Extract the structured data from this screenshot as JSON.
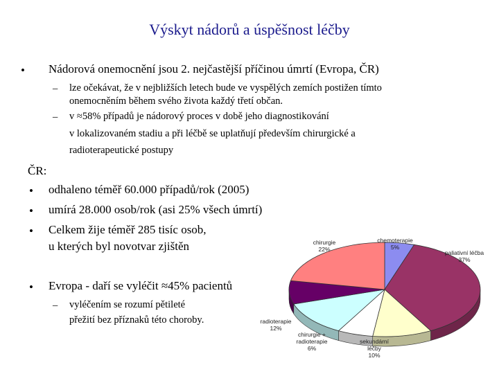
{
  "title": "Výskyt nádorů a úspěšnost léčby",
  "bullet_glyph": "•",
  "dash_glyph": "–",
  "section1": {
    "text": "Nádorová onemocnění jsou 2. nejčastější příčinou úmrtí (Evropa, ČR)",
    "sub": [
      {
        "lines": [
          "lze očekávat, že v nejbližších letech bude ve vyspělých zemích postižen tímto",
          "onemocněním během svého života každý třetí občan."
        ]
      },
      {
        "lines": [
          "v ≈58% případů je nádorový proces v době jeho diagnostikování",
          "v lokalizovaném stadiu a při léčbě se uplatňují především chirurgické a",
          "radioterapeutické postupy"
        ]
      }
    ]
  },
  "cr": {
    "heading": "ČR:",
    "items": [
      "odhaleno téměř 60.000 případů/rok (2005)",
      "umírá 28.000 osob/rok (asi 25% všech úmrtí)",
      "Celkem žije téměř 285 tisíc osob,",
      "u kterých byl novotvar zjištěn"
    ]
  },
  "europe": {
    "text": "Evropa - daří se vyléčit ≈45% pacientů",
    "sub_lines": [
      "vyléčením se rozumí pětileté",
      "přežití bez příznaků této choroby."
    ]
  },
  "chart_data": {
    "type": "pie",
    "slices": [
      {
        "name": "chemoterapie",
        "value": 5,
        "color": "#8c8cf0",
        "label_lines": [
          "chemoterapie",
          "5%"
        ]
      },
      {
        "name": "paliativní léčba",
        "value": 37,
        "color": "#993366",
        "label_lines": [
          "paliativní léčba",
          "37%"
        ]
      },
      {
        "name": "sekundární léčby",
        "value": 10,
        "color": "#ffffcc",
        "label_lines": [
          "sekundární",
          "léčby",
          "10%"
        ]
      },
      {
        "name": "chirurgie + radioterapie",
        "value": 6,
        "color": "#ffffff",
        "label_lines": [
          "chirurgie +",
          "radioterapie",
          "6%"
        ]
      },
      {
        "name": "radioterapie",
        "value": 12,
        "color": "#ccffff",
        "label_lines": [
          "radioterapie",
          "12%"
        ]
      },
      {
        "name": "",
        "value": 8,
        "color": "#660066",
        "label_lines": []
      },
      {
        "name": "chirurgie",
        "value": 22,
        "color": "#ff8080",
        "label_lines": [
          "chirurgie",
          "22%"
        ]
      }
    ]
  }
}
